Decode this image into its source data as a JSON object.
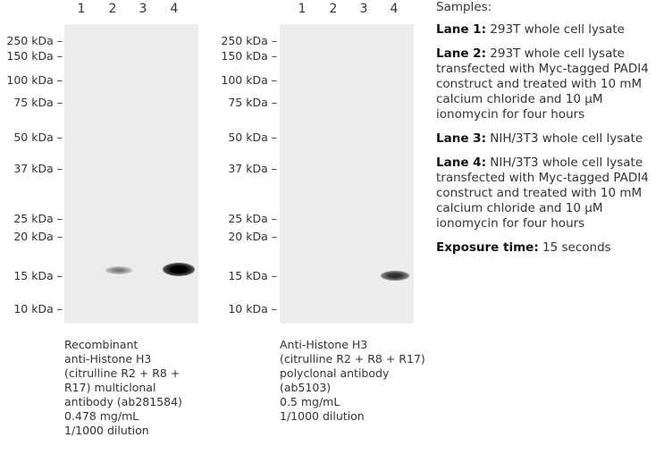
{
  "lanes": [
    "1",
    "2",
    "3",
    "4"
  ],
  "markers": [
    "250 kDa –",
    "150 kDa –",
    "100 kDa –",
    "75 kDa –",
    "50 kDa –",
    "37 kDa –",
    "25 kDa –",
    "20 kDa –",
    "15 kDa –",
    "10 kDa –"
  ],
  "blot1": {
    "caption": "Recombinant\nanti-Histone H3\n(citrulline R2 + R8 +\nR17) multiclonal\nantibody (ab281584)\n0.478 mg/mL\n1/1000 dilution"
  },
  "blot2": {
    "caption": "Anti-Histone H3\n (citrulline R2 + R8 + R17)\npolyclonal antibody\n(ab5103)\n0.5 mg/mL\n1/1000 dilution"
  },
  "samples": {
    "title": "Samples:",
    "items": [
      {
        "label": "Lane 1:",
        "text": " 293T whole cell lysate"
      },
      {
        "label": "Lane 2:",
        "text": " 293T whole cell lysate transfected with Myc-tagged PADI4 construct and treated with 10 mM calcium chloride and 10 µM ionomycin for four hours"
      },
      {
        "label": "Lane 3:",
        "text": " NIH/3T3 whole cell lysate"
      },
      {
        "label": "Lane 4:",
        "text": " NIH/3T3 whole cell lysate transfected with Myc-tagged PADI4 construct and treated with 10 mM calcium chloride and 10 µM ionomycin for four hours"
      }
    ],
    "exposure_label": "Exposure time:",
    "exposure_value": " 15 seconds"
  }
}
